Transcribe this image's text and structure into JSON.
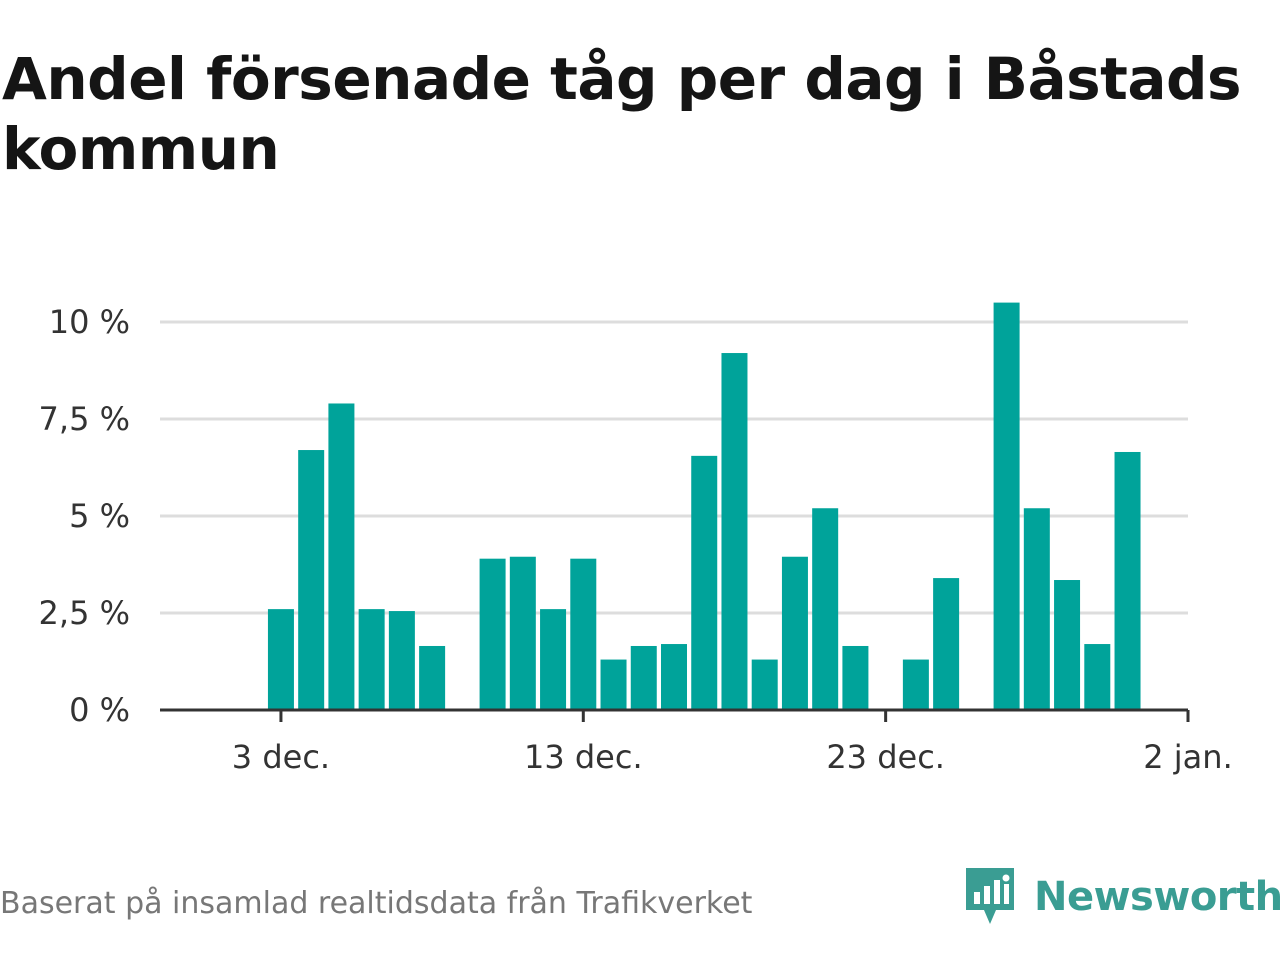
{
  "title": "Andel försenade tåg per dag i Båstads kommun",
  "source": "Baserat på insamlad realtidsdata från Trafikverket",
  "brand": {
    "name": "Newsworthy",
    "icon": "newsworthy-logo-icon"
  },
  "colors": {
    "bar": "#00a39a",
    "grid": "#dddddd",
    "axis": "#333333",
    "brand": "#3a9d93"
  },
  "chart_data": {
    "type": "bar",
    "title": "Andel försenade tåg per dag i Båstads kommun",
    "xlabel": "",
    "ylabel": "",
    "x_ticks": [
      {
        "date": "2023-12-03",
        "label": "3 dec."
      },
      {
        "date": "2023-12-13",
        "label": "13 dec."
      },
      {
        "date": "2023-12-23",
        "label": "23 dec."
      },
      {
        "date": "2024-01-02",
        "label": "2 jan."
      }
    ],
    "y_ticks": [
      {
        "value": 0,
        "label": "0 %"
      },
      {
        "value": 2.5,
        "label": "2,5 %"
      },
      {
        "value": 5,
        "label": "5 %"
      },
      {
        "value": 7.5,
        "label": "7,5 %"
      },
      {
        "value": 10,
        "label": "10 %"
      }
    ],
    "xlim": [
      "2023-11-29",
      "2024-01-02"
    ],
    "ylim": [
      0,
      10
    ],
    "grid": true,
    "unit": "%",
    "data": [
      {
        "date": "2023-12-03",
        "value": 2.6
      },
      {
        "date": "2023-12-04",
        "value": 6.7
      },
      {
        "date": "2023-12-05",
        "value": 7.9
      },
      {
        "date": "2023-12-06",
        "value": 2.6
      },
      {
        "date": "2023-12-07",
        "value": 2.55
      },
      {
        "date": "2023-12-08",
        "value": 1.65
      },
      {
        "date": "2023-12-10",
        "value": 3.9
      },
      {
        "date": "2023-12-11",
        "value": 3.95
      },
      {
        "date": "2023-12-12",
        "value": 2.6
      },
      {
        "date": "2023-12-13",
        "value": 3.9
      },
      {
        "date": "2023-12-14",
        "value": 1.3
      },
      {
        "date": "2023-12-15",
        "value": 1.65
      },
      {
        "date": "2023-12-16",
        "value": 1.7
      },
      {
        "date": "2023-12-17",
        "value": 6.55
      },
      {
        "date": "2023-12-18",
        "value": 9.2
      },
      {
        "date": "2023-12-19",
        "value": 1.3
      },
      {
        "date": "2023-12-20",
        "value": 3.95
      },
      {
        "date": "2023-12-21",
        "value": 5.2
      },
      {
        "date": "2023-12-22",
        "value": 1.65
      },
      {
        "date": "2023-12-24",
        "value": 1.3
      },
      {
        "date": "2023-12-25",
        "value": 3.4
      },
      {
        "date": "2023-12-27",
        "value": 10.5
      },
      {
        "date": "2023-12-28",
        "value": 5.2
      },
      {
        "date": "2023-12-29",
        "value": 3.35
      },
      {
        "date": "2023-12-30",
        "value": 1.7
      },
      {
        "date": "2023-12-31",
        "value": 6.65
      }
    ]
  }
}
